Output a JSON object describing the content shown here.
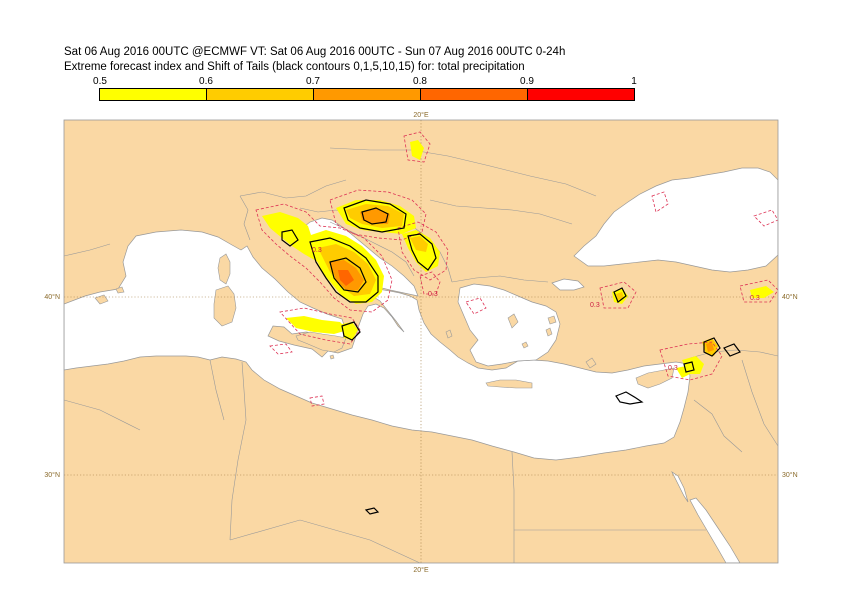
{
  "title": {
    "line1": "Sat 06 Aug 2016 00UTC @ECMWF VT: Sat 06 Aug 2016 00UTC - Sun 07 Aug 2016 00UTC  0-24h",
    "line2": "Extreme forecast index and Shift of Tails (black contours 0,1,5,10,15) for: total precipitation"
  },
  "colorbar": {
    "ticks": [
      "0.5",
      "0.6",
      "0.7",
      "0.8",
      "0.9",
      "1"
    ],
    "colors": [
      "#ffff00",
      "#ffcc00",
      "#ff9900",
      "#ff6600",
      "#ff0000"
    ]
  },
  "colors": {
    "land": "#fad8a4",
    "sea": "#ffffff",
    "coast": "#999999",
    "grid": "#a07a40",
    "contour_dashed": "#dd3355",
    "sot": "#000000"
  },
  "map": {
    "grid_labels": {
      "lon_top": "20°E",
      "lon_bottom": "20°E",
      "lat40_left": "40°N",
      "lat40_right": "40°N",
      "lat30_left": "30°N",
      "lat30_right": "30°N"
    },
    "contour_labels": [
      "0.3",
      "0.3",
      "0.3",
      "0.3",
      "0.3"
    ]
  }
}
